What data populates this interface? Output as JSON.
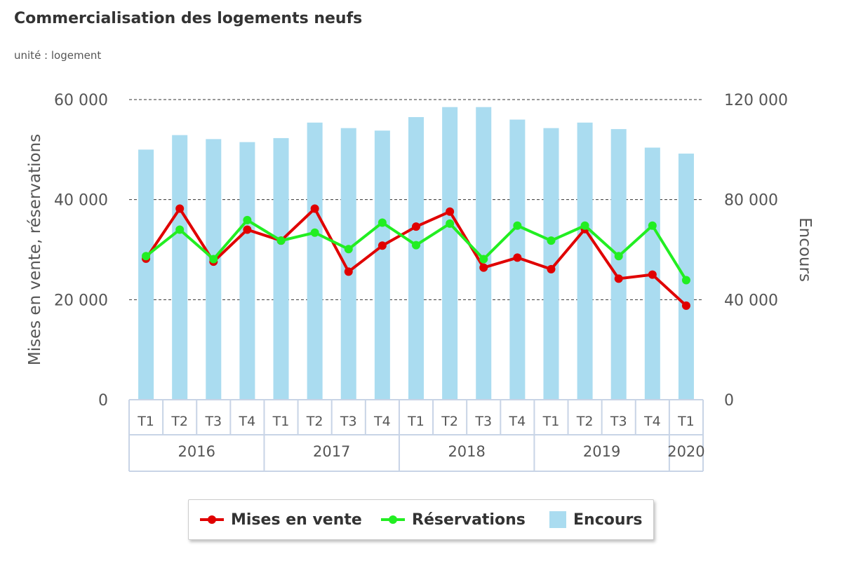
{
  "title": "Commercialisation des logements neufs",
  "subtitle": "unité : logement",
  "legend": {
    "mises": "Mises en vente",
    "reservations": "Réservations",
    "encours": "Encours"
  },
  "colors": {
    "mises": "#e00000",
    "reservations": "#22ee22",
    "encours": "#aadcf0",
    "grid": "#333333",
    "axis_cells": "#c8d4e6"
  },
  "chart_data": {
    "type": "bar",
    "categories": [
      "T1",
      "T2",
      "T3",
      "T4",
      "T1",
      "T2",
      "T3",
      "T4",
      "T1",
      "T2",
      "T3",
      "T4",
      "T1",
      "T2",
      "T3",
      "T4",
      "T1"
    ],
    "years": [
      {
        "label": "2016",
        "count": 4
      },
      {
        "label": "2017",
        "count": 4
      },
      {
        "label": "2018",
        "count": 4
      },
      {
        "label": "2019",
        "count": 4
      },
      {
        "label": "2020",
        "count": 1
      }
    ],
    "series": [
      {
        "name": "Encours",
        "kind": "bar",
        "axis": "right",
        "values": [
          100000,
          105800,
          104200,
          103000,
          104600,
          110800,
          108600,
          107600,
          113000,
          117000,
          117000,
          112000,
          108600,
          110800,
          108200,
          100800,
          98400
        ]
      },
      {
        "name": "Mises en vente",
        "kind": "line",
        "axis": "left",
        "values": [
          28200,
          38200,
          27600,
          34000,
          31800,
          38200,
          25600,
          30800,
          34600,
          37600,
          26400,
          28400,
          26100,
          34100,
          24200,
          25000,
          18800
        ]
      },
      {
        "name": "Réservations",
        "kind": "line",
        "axis": "left",
        "values": [
          28700,
          34000,
          28100,
          35900,
          31800,
          33400,
          30100,
          35400,
          30900,
          35200,
          28100,
          34800,
          31800,
          34800,
          28700,
          34800,
          23900
        ]
      }
    ],
    "ylabel": "Mises en vente, réservations",
    "y2label": "Encours",
    "ylim": [
      0,
      60000
    ],
    "y2lim": [
      0,
      120000
    ],
    "yticks": [
      "0",
      "20 000",
      "40 000",
      "60 000"
    ],
    "y2ticks": [
      "0",
      "40 000",
      "80 000",
      "120 000"
    ],
    "grid": true,
    "legend_position": "bottom-center"
  }
}
